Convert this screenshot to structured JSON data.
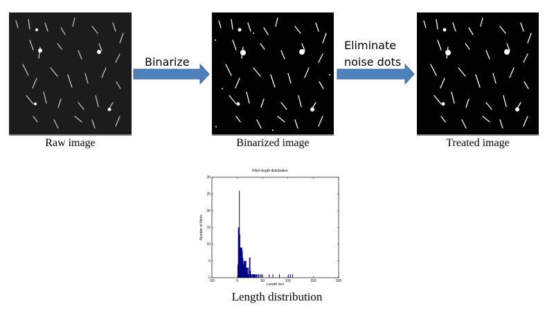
{
  "steps": [
    {
      "caption": "Raw image"
    },
    {
      "caption": "Binarized image"
    },
    {
      "caption": "Treated image"
    }
  ],
  "arrows": [
    {
      "label": "Binarize"
    },
    {
      "label_line1": "Eliminate",
      "label_line2": "noise dots"
    }
  ],
  "histogram_caption": "Length distribution",
  "colors": {
    "arrow_fill": "#4f81bd",
    "arrow_border": "#3a6190",
    "bar_color": "#000080"
  },
  "chart_data": {
    "type": "bar",
    "title": "Fibril length distribution",
    "xlabel": "Length (px)",
    "ylabel": "Number of fibrils",
    "xlim": [
      -50,
      200
    ],
    "ylim": [
      0,
      30
    ],
    "xticks": [
      -50,
      0,
      50,
      100,
      150,
      200
    ],
    "yticks": [
      0,
      5,
      10,
      15,
      20,
      25,
      30
    ],
    "grid": false,
    "x": [
      1,
      2,
      3,
      4,
      5,
      6,
      7,
      8,
      9,
      10,
      11,
      12,
      13,
      14,
      15,
      16,
      17,
      18,
      19,
      20,
      21,
      22,
      23,
      24,
      25,
      26,
      27,
      28,
      29,
      30,
      31,
      32,
      33,
      34,
      35,
      36,
      38,
      40,
      42,
      45,
      47,
      50,
      63,
      70,
      83,
      101,
      105,
      109
    ],
    "values": [
      4,
      15,
      15,
      26,
      13,
      9,
      9,
      9,
      9,
      8,
      6,
      4,
      5,
      5,
      5,
      5,
      5,
      3,
      3,
      3,
      1,
      3,
      1,
      6,
      6,
      2,
      1,
      1,
      0,
      1,
      1,
      1,
      1,
      1,
      1,
      1,
      1,
      1,
      1,
      1,
      1,
      1,
      1,
      1,
      1,
      1,
      1,
      1
    ]
  }
}
